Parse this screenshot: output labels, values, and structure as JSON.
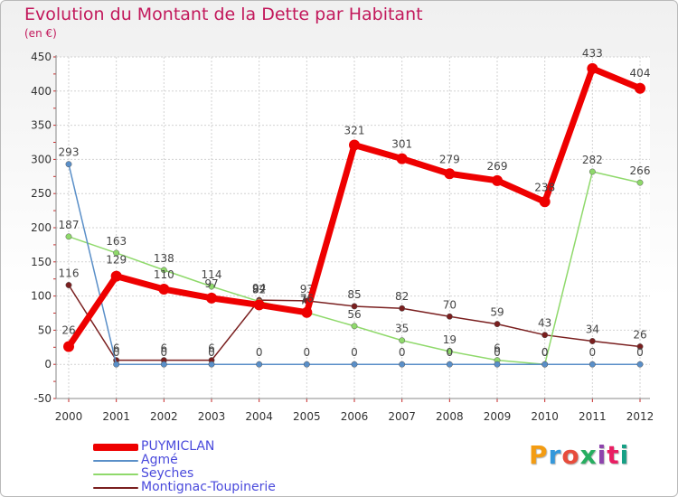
{
  "title": "Evolution du Montant de la Dette par Habitant",
  "subtitle": "(en €)",
  "logo": {
    "text": "Proxiti",
    "colors": [
      "#f39c12",
      "#3498db",
      "#e74c3c",
      "#27ae60",
      "#8e44ad",
      "#e91e63",
      "#16a085"
    ]
  },
  "chart_data": {
    "type": "line",
    "title": "Evolution du Montant de la Dette par Habitant",
    "ylabel": "(en €)",
    "xlabel": "",
    "x": [
      "2000",
      "2001",
      "2002",
      "2003",
      "2004",
      "2005",
      "2006",
      "2007",
      "2008",
      "2009",
      "2010",
      "2011",
      "2012"
    ],
    "ylim": [
      -50,
      450
    ],
    "yticks": [
      -50,
      0,
      50,
      100,
      150,
      200,
      250,
      300,
      350,
      400,
      450
    ],
    "grid": true,
    "legend_position": "bottom-left",
    "series": [
      {
        "name": "Montignac-Toupinerie",
        "color": "#7a1f1f",
        "values": [
          116,
          6,
          6,
          6,
          94,
          93,
          85,
          82,
          70,
          59,
          43,
          34,
          26
        ]
      },
      {
        "name": "Seyches",
        "color": "#8fd96b",
        "values": [
          187,
          163,
          138,
          114,
          92,
          76,
          56,
          35,
          19,
          6,
          0,
          282,
          266
        ]
      },
      {
        "name": "Agmé",
        "color": "#5a8fc8",
        "values": [
          293,
          0,
          0,
          0,
          0,
          0,
          0,
          0,
          0,
          0,
          0,
          0,
          0
        ]
      },
      {
        "name": "PUYMICLAN",
        "color": "#ee0000",
        "values": [
          26,
          129,
          110,
          97,
          87,
          76,
          321,
          301,
          279,
          269,
          238,
          433,
          404
        ]
      }
    ],
    "legend": [
      "PUYMICLAN",
      "Agmé",
      "Seyches",
      "Montignac-Toupinerie"
    ]
  }
}
